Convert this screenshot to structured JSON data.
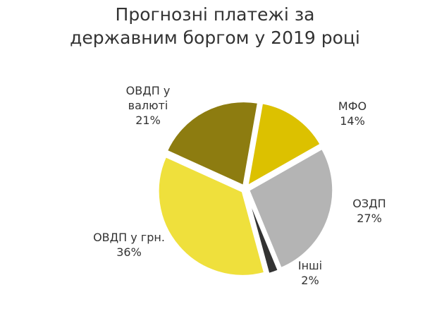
{
  "chart_data": {
    "type": "pie",
    "title": "Прогнозні платежі за державним боргом у 2019 році",
    "categories": [
      "МФО",
      "ОЗДП",
      "Інші",
      "ОВДП у грн.",
      "ОВДП у валюті"
    ],
    "values": [
      14,
      27,
      2,
      36,
      21
    ],
    "value_labels": [
      "14%",
      "27%",
      "2%",
      "36%",
      "21%"
    ],
    "colors": [
      "#dcc100",
      "#b4b4b4",
      "#333333",
      "#efe03c",
      "#8d7c10"
    ]
  }
}
